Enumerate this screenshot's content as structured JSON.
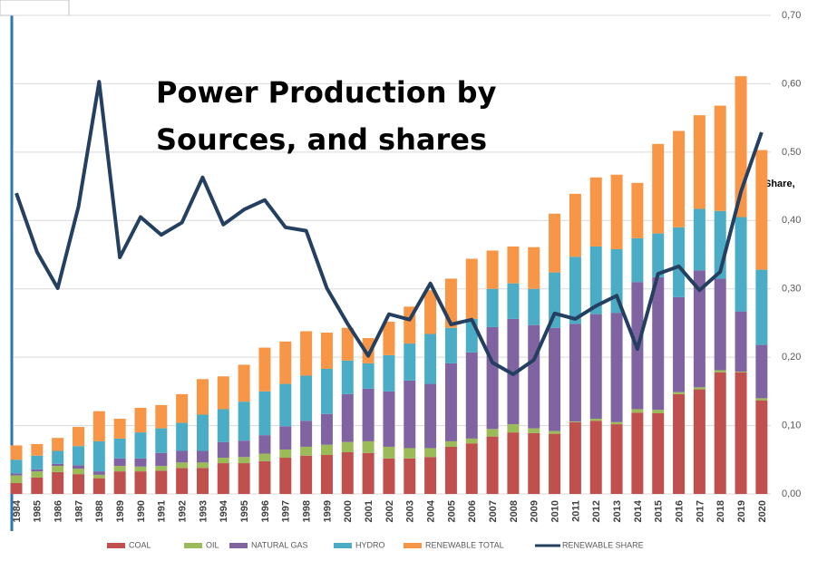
{
  "chart_data": {
    "type": "bar",
    "title": "Power Production by Sources, and shares",
    "y_axis_label": "Share,",
    "categories": [
      "1984",
      "1985",
      "1986",
      "1987",
      "1988",
      "1989",
      "1990",
      "1991",
      "1992",
      "1993",
      "1994",
      "1995",
      "1996",
      "1997",
      "1998",
      "1999",
      "2000",
      "2001",
      "2002",
      "2003",
      "2004",
      "2005",
      "2006",
      "2007",
      "2008",
      "2009",
      "2010",
      "2011",
      "2012",
      "2013",
      "2014",
      "2015",
      "2016",
      "2017",
      "2018",
      "2019",
      "2020"
    ],
    "stacked": true,
    "ylim": [
      0,
      0.7
    ],
    "yticks": [
      {
        "value": 0,
        "label": "0,00"
      },
      {
        "value": 0.1,
        "label": "0,10"
      },
      {
        "value": 0.2,
        "label": "0,20"
      },
      {
        "value": 0.3,
        "label": "0,30"
      },
      {
        "value": 0.4,
        "label": "0,40"
      },
      {
        "value": 0.5,
        "label": "0,50"
      },
      {
        "value": 0.6,
        "label": "0,60"
      },
      {
        "value": 0.7,
        "label": "0,70"
      }
    ],
    "grid": true,
    "legend": "bottom",
    "series": [
      {
        "name": "COAL",
        "color": "#c0504d",
        "values": [
          0.016,
          0.024,
          0.032,
          0.029,
          0.023,
          0.033,
          0.033,
          0.034,
          0.038,
          0.038,
          0.045,
          0.045,
          0.048,
          0.053,
          0.056,
          0.057,
          0.061,
          0.06,
          0.052,
          0.052,
          0.054,
          0.069,
          0.074,
          0.084,
          0.09,
          0.089,
          0.088,
          0.105,
          0.107,
          0.102,
          0.119,
          0.118,
          0.146,
          0.153,
          0.178,
          0.178,
          0.137
        ]
      },
      {
        "name": "OIL",
        "color": "#9bbb59",
        "values": [
          0.011,
          0.009,
          0.009,
          0.008,
          0.005,
          0.008,
          0.007,
          0.007,
          0.008,
          0.008,
          0.008,
          0.009,
          0.011,
          0.012,
          0.013,
          0.015,
          0.015,
          0.017,
          0.017,
          0.015,
          0.013,
          0.008,
          0.007,
          0.011,
          0.012,
          0.007,
          0.004,
          0.001,
          0.003,
          0.003,
          0.005,
          0.005,
          0.003,
          0.003,
          0.003,
          0.001,
          0.003
        ]
      },
      {
        "name": "NATURAL GAS",
        "color": "#8064a2",
        "values": [
          0.003,
          0.003,
          0.003,
          0.005,
          0.005,
          0.011,
          0.012,
          0.019,
          0.017,
          0.017,
          0.023,
          0.024,
          0.027,
          0.034,
          0.038,
          0.045,
          0.07,
          0.077,
          0.081,
          0.099,
          0.094,
          0.114,
          0.126,
          0.149,
          0.154,
          0.151,
          0.151,
          0.143,
          0.153,
          0.16,
          0.186,
          0.194,
          0.139,
          0.171,
          0.134,
          0.088,
          0.078
        ]
      },
      {
        "name": "HYDRO",
        "color": "#4bacc6",
        "values": [
          0.02,
          0.02,
          0.019,
          0.028,
          0.044,
          0.029,
          0.038,
          0.036,
          0.041,
          0.053,
          0.048,
          0.057,
          0.064,
          0.062,
          0.066,
          0.066,
          0.049,
          0.037,
          0.053,
          0.054,
          0.073,
          0.052,
          0.049,
          0.056,
          0.052,
          0.053,
          0.081,
          0.098,
          0.099,
          0.093,
          0.064,
          0.064,
          0.102,
          0.09,
          0.099,
          0.138,
          0.11
        ]
      },
      {
        "name": "RENEWABLE TOTAL",
        "color": "#f79646",
        "values": [
          0.021,
          0.017,
          0.019,
          0.028,
          0.044,
          0.029,
          0.036,
          0.034,
          0.042,
          0.052,
          0.048,
          0.054,
          0.064,
          0.062,
          0.065,
          0.053,
          0.048,
          0.037,
          0.049,
          0.054,
          0.064,
          0.072,
          0.088,
          0.056,
          0.054,
          0.061,
          0.086,
          0.092,
          0.101,
          0.109,
          0.081,
          0.131,
          0.141,
          0.137,
          0.154,
          0.206,
          0.175
        ]
      },
      {
        "name": "RENEWABLE SHARE",
        "color": "#243f60",
        "type": "line",
        "values": [
          0.44,
          0.354,
          0.301,
          0.42,
          0.603,
          0.346,
          0.405,
          0.379,
          0.397,
          0.463,
          0.394,
          0.416,
          0.43,
          0.39,
          0.385,
          0.301,
          0.249,
          0.202,
          0.263,
          0.255,
          0.308,
          0.248,
          0.255,
          0.192,
          0.175,
          0.196,
          0.264,
          0.256,
          0.275,
          0.29,
          0.212,
          0.322,
          0.333,
          0.298,
          0.325,
          0.442,
          0.529
        ]
      }
    ]
  }
}
